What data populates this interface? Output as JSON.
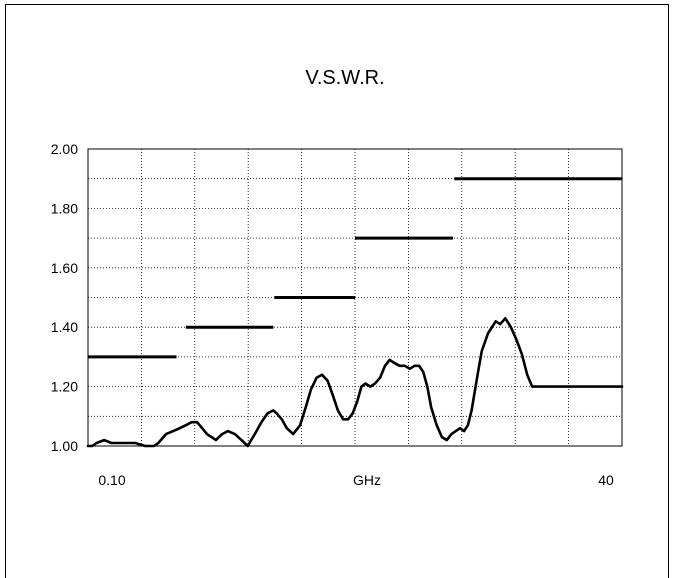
{
  "chart_data": {
    "type": "line",
    "title": "V.S.W.R.",
    "xlabel": "GHz",
    "ylabel": "",
    "x_scale": "log",
    "xlim": [
      0.1,
      40
    ],
    "ylim": [
      1.0,
      2.0
    ],
    "y_ticks": [
      "2.00",
      "1.80",
      "1.60",
      "1.40",
      "1.20",
      "1.00"
    ],
    "x_tick_labels": [
      "0.10",
      "40"
    ],
    "grid": true,
    "colors": {
      "line": "#000000",
      "grid": "#000000",
      "axis": "#000000"
    },
    "series": [
      {
        "role": "limit-steps",
        "segments": [
          {
            "x": [
              0.1,
              0.27
            ],
            "y": 1.3
          },
          {
            "x": [
              0.3,
              0.8
            ],
            "y": 1.4
          },
          {
            "x": [
              0.81,
              2.0
            ],
            "y": 1.5
          },
          {
            "x": [
              2.0,
              6.0
            ],
            "y": 1.7
          },
          {
            "x": [
              6.1,
              40
            ],
            "y": 1.9
          }
        ]
      },
      {
        "role": "measured",
        "x": [
          0.1,
          0.105,
          0.11,
          0.12,
          0.13,
          0.15,
          0.17,
          0.19,
          0.21,
          0.22,
          0.24,
          0.26,
          0.28,
          0.3,
          0.32,
          0.34,
          0.36,
          0.38,
          0.4,
          0.42,
          0.45,
          0.48,
          0.52,
          0.56,
          0.6,
          0.65,
          0.7,
          0.75,
          0.8,
          0.83,
          0.88,
          0.93,
          1.0,
          1.08,
          1.15,
          1.22,
          1.3,
          1.38,
          1.47,
          1.56,
          1.65,
          1.75,
          1.85,
          1.95,
          2.05,
          2.15,
          2.25,
          2.38,
          2.5,
          2.65,
          2.8,
          2.95,
          3.1,
          3.3,
          3.5,
          3.7,
          3.9,
          4.1,
          4.3,
          4.5,
          4.7,
          5.0,
          5.3,
          5.6,
          5.9,
          6.2,
          6.5,
          6.8,
          7.1,
          7.4,
          7.7,
          8.0,
          8.3,
          8.6,
          8.9,
          9.3,
          9.7,
          10.2,
          10.8,
          11.5,
          12.2,
          13.0,
          13.8,
          14.6,
          15.4,
          16.3,
          17.2,
          18.2,
          19.2,
          20.5,
          21.5,
          22.5,
          23.5,
          24.5,
          25.5,
          26.5,
          27.5,
          28.5,
          29.5,
          30.5,
          31.5,
          32.5,
          34.0,
          35.5,
          37.0,
          38.5,
          40.0
        ],
        "y": [
          1.0,
          1.0,
          1.01,
          1.02,
          1.01,
          1.01,
          1.01,
          1.0,
          1.0,
          1.01,
          1.04,
          1.05,
          1.06,
          1.07,
          1.08,
          1.08,
          1.06,
          1.04,
          1.03,
          1.02,
          1.04,
          1.05,
          1.04,
          1.02,
          1.0,
          1.04,
          1.08,
          1.11,
          1.12,
          1.11,
          1.09,
          1.06,
          1.04,
          1.07,
          1.13,
          1.19,
          1.23,
          1.24,
          1.22,
          1.17,
          1.12,
          1.09,
          1.09,
          1.11,
          1.15,
          1.2,
          1.21,
          1.2,
          1.21,
          1.23,
          1.27,
          1.29,
          1.28,
          1.27,
          1.27,
          1.26,
          1.27,
          1.27,
          1.25,
          1.2,
          1.13,
          1.07,
          1.03,
          1.02,
          1.04,
          1.05,
          1.06,
          1.05,
          1.07,
          1.12,
          1.19,
          1.26,
          1.32,
          1.35,
          1.38,
          1.4,
          1.42,
          1.41,
          1.43,
          1.4,
          1.36,
          1.31,
          1.24,
          1.2,
          1.2,
          1.2,
          1.2,
          1.2,
          1.2,
          1.2,
          1.2,
          1.2,
          1.2,
          1.2,
          1.2,
          1.2,
          1.2,
          1.2,
          1.2,
          1.2,
          1.2,
          1.2,
          1.2,
          1.2,
          1.2,
          1.2,
          1.2
        ]
      }
    ]
  }
}
